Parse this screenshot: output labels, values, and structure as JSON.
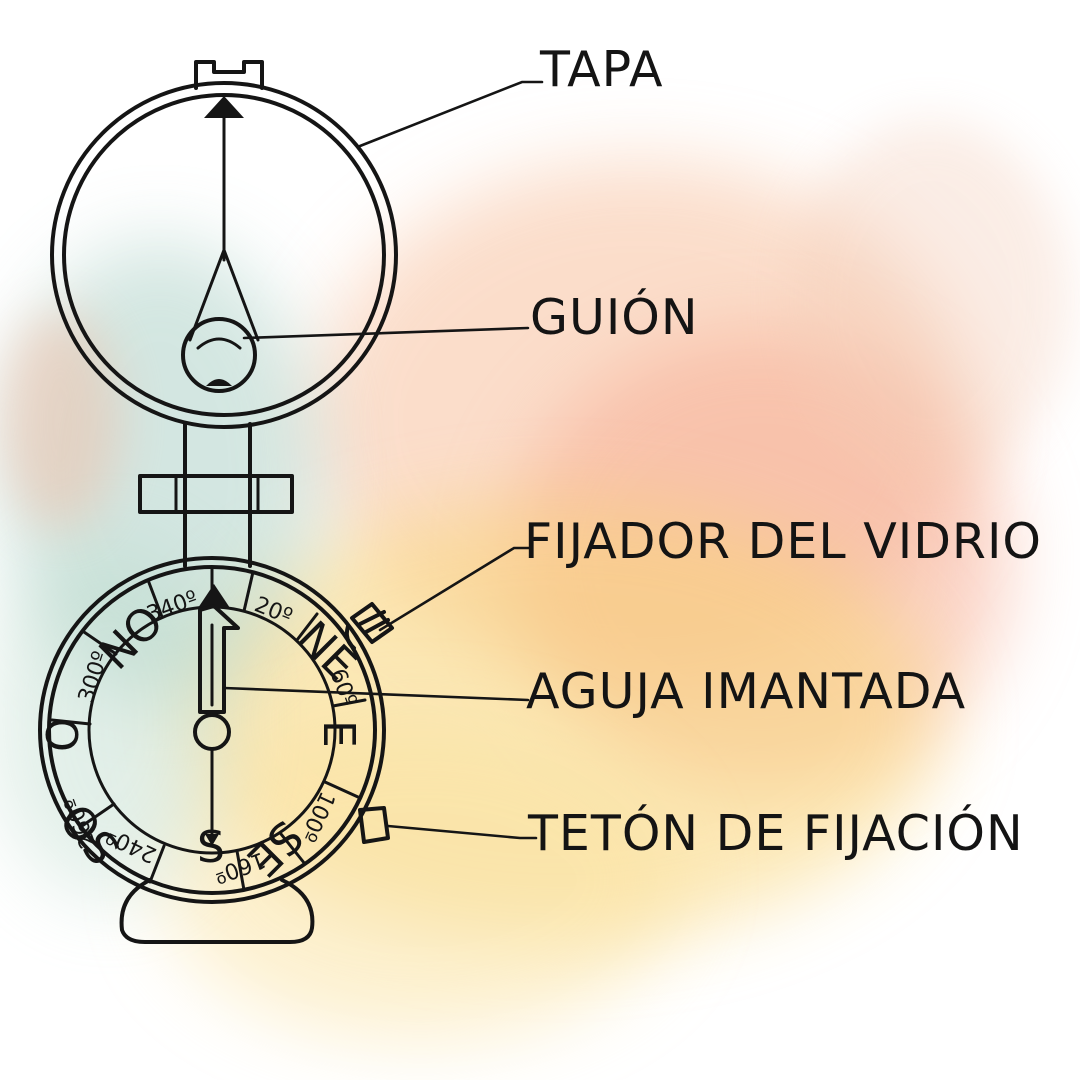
{
  "labels": {
    "tapa": "TAPA",
    "guion": "GUIÓN",
    "fijador": "FIJADOR DEL VIDRIO",
    "aguja": "AGUJA IMANTADA",
    "teton": "TETÓN DE FIJACIÓN"
  },
  "dial": {
    "north_mark": "N",
    "north_secondary": "NO",
    "northeast": "NE",
    "east": "E",
    "southeast": "SE",
    "south": "S",
    "southwest": "SO",
    "west": "O",
    "deg_20": "20º",
    "deg_60": "60º",
    "deg_100": "100º",
    "deg_160": "160º",
    "deg_240": "240º",
    "deg_260": "260º",
    "deg_300": "300º",
    "deg_340": "340º"
  },
  "colors": {
    "ink": "#151515",
    "wash_warm": "#f7b58c",
    "wash_yellow": "#f9d67a",
    "wash_teal": "#9fc9bd"
  }
}
